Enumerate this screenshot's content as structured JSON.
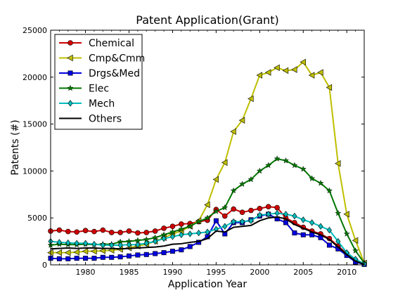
{
  "chart_data": {
    "type": "line",
    "title": "Patent Application(Grant)",
    "xlabel": "Application Year",
    "ylabel": "Patents (#)",
    "xlim": [
      1976,
      2012
    ],
    "ylim": [
      0,
      25000
    ],
    "x_ticks": [
      1980,
      1985,
      1990,
      1995,
      2000,
      2005,
      2010
    ],
    "y_ticks": [
      0,
      5000,
      10000,
      15000,
      20000,
      25000
    ],
    "x_tick_labels": [
      "1980",
      "1985",
      "1990",
      "1995",
      "2000",
      "2005",
      "2010"
    ],
    "y_tick_labels": [
      "0",
      "5000",
      "10000",
      "15000",
      "20000",
      "25000"
    ],
    "grid": false,
    "legend_position": "top-left",
    "x": [
      1976,
      1977,
      1978,
      1979,
      1980,
      1981,
      1982,
      1983,
      1984,
      1985,
      1986,
      1987,
      1988,
      1989,
      1990,
      1991,
      1992,
      1993,
      1994,
      1995,
      1996,
      1997,
      1998,
      1999,
      2000,
      2001,
      2002,
      2003,
      2004,
      2005,
      2006,
      2007,
      2008,
      2009,
      2010,
      2011,
      2012
    ],
    "series": [
      {
        "name": "Chemical",
        "color": "#cc0000",
        "marker": "circle",
        "values": [
          3600,
          3700,
          3550,
          3500,
          3650,
          3550,
          3700,
          3450,
          3450,
          3600,
          3400,
          3450,
          3600,
          3900,
          4100,
          4350,
          4400,
          4600,
          4750,
          5900,
          5200,
          5950,
          5600,
          5800,
          6000,
          6200,
          6100,
          5000,
          4500,
          4000,
          3600,
          3300,
          2800,
          2000,
          1200,
          500,
          100
        ]
      },
      {
        "name": "Cmp&Cmm",
        "color": "#bfbf00",
        "marker": "triangle-left",
        "values": [
          1300,
          1300,
          1300,
          1350,
          1450,
          1450,
          1500,
          1550,
          1650,
          1800,
          2000,
          2200,
          2500,
          2900,
          3300,
          3600,
          4100,
          4700,
          6400,
          9100,
          10900,
          14200,
          15400,
          17700,
          20200,
          20500,
          21000,
          20700,
          20800,
          21600,
          20200,
          20500,
          18900,
          10800,
          5400,
          2600,
          200
        ]
      },
      {
        "name": "Drgs&Med",
        "color": "#0000dd",
        "marker": "square",
        "values": [
          700,
          650,
          650,
          700,
          700,
          700,
          800,
          800,
          850,
          950,
          1050,
          1100,
          1200,
          1300,
          1450,
          1600,
          1950,
          2400,
          3000,
          4700,
          3300,
          4500,
          4500,
          4800,
          5200,
          5400,
          4900,
          4500,
          3400,
          3200,
          3200,
          2900,
          2100,
          1700,
          1000,
          300,
          50
        ]
      },
      {
        "name": "Elec",
        "color": "#007700",
        "marker": "star",
        "values": [
          2100,
          2200,
          2150,
          2150,
          2200,
          2150,
          2200,
          2200,
          2450,
          2500,
          2600,
          2700,
          2900,
          3200,
          3500,
          3800,
          4100,
          4600,
          5000,
          5700,
          6100,
          7900,
          8600,
          9100,
          10000,
          10600,
          11300,
          11100,
          10600,
          10200,
          9200,
          8700,
          7900,
          5500,
          3300,
          1500,
          200
        ]
      },
      {
        "name": "Mech",
        "color": "#00bbbb",
        "marker": "diamond",
        "values": [
          2500,
          2400,
          2350,
          2300,
          2300,
          2200,
          2100,
          2100,
          2100,
          2150,
          2150,
          2300,
          2500,
          2800,
          3000,
          3200,
          3300,
          3400,
          3500,
          3800,
          4100,
          4600,
          4600,
          4700,
          5300,
          5400,
          5500,
          5400,
          5200,
          4800,
          4500,
          4100,
          3700,
          2500,
          1300,
          600,
          100
        ]
      },
      {
        "name": "Others",
        "color": "#000000",
        "marker": "none",
        "values": [
          1700,
          1750,
          1800,
          1750,
          1800,
          1800,
          1750,
          1750,
          1700,
          1750,
          1800,
          1850,
          1900,
          2000,
          2200,
          2250,
          2400,
          2500,
          2800,
          3600,
          3500,
          4000,
          4100,
          4200,
          4700,
          5000,
          5100,
          4900,
          4300,
          3900,
          3500,
          3200,
          2700,
          1900,
          1100,
          400,
          50
        ]
      }
    ]
  }
}
